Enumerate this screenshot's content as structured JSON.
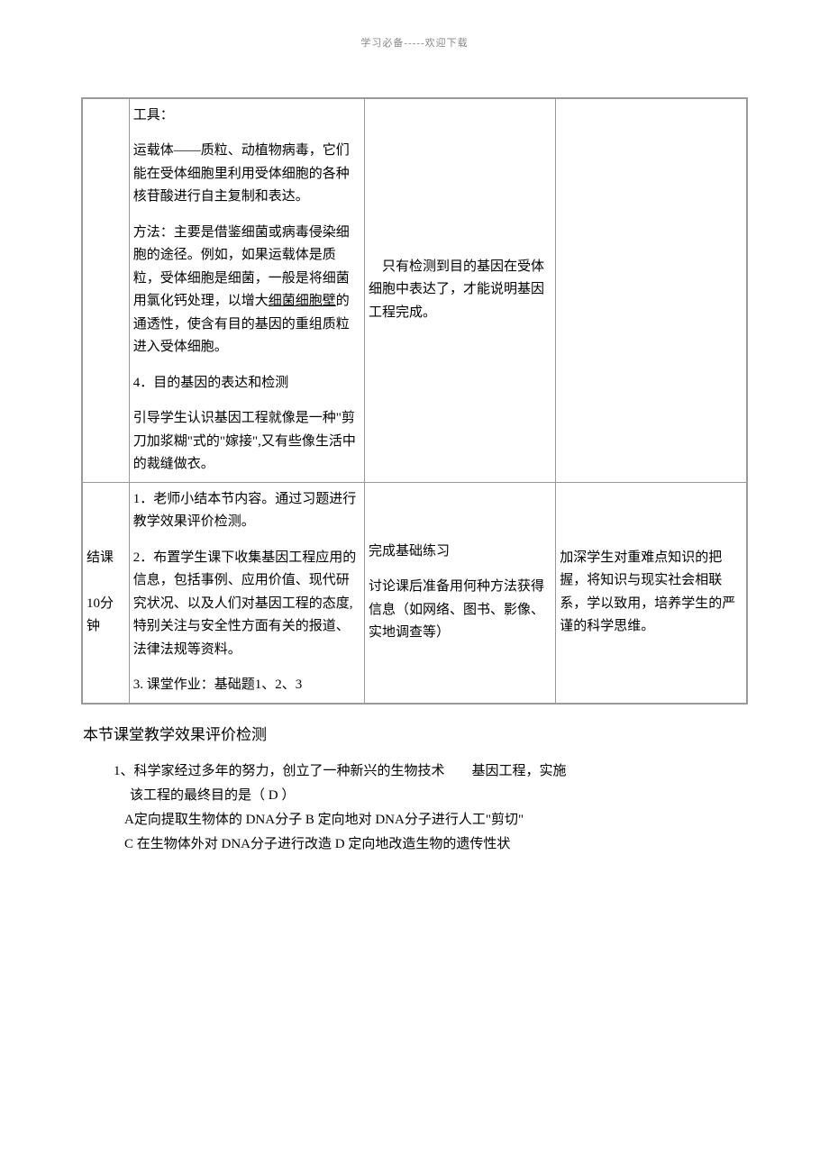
{
  "header": "学习必备-----欢迎下载",
  "table": {
    "row1": {
      "col1": "",
      "col2": {
        "p1": "工具：",
        "p2_part1": "运载体——质粒、动植物病毒，它们能在受体细胞里利用受体细胞的各种核苷酸进行自主复制和表达。",
        "p3_part1": "方法：主要是借鉴细菌或病毒侵染细胞的途径。例如，如果运载体是质粒，受体细胞是细菌，一般是将细菌用氯化钙处理，以增大",
        "p3_underline": "细菌细胞壁",
        "p3_part2": "的通透性，使含有目的基因的重组质粒进入受体细胞。",
        "p4": "4．目的基因的表达和检测",
        "p5": "引导学生认识基因工程就像是一种\"剪刀加浆糊\"式的\"嫁接\",又有些像生活中的裁缝做衣。"
      },
      "col3": "　只有检测到目的基因在受体细胞中表达了，才能说明基因工程完成。",
      "col4": ""
    },
    "row2": {
      "col1": "结课\n\n10分钟",
      "col2": {
        "p1": "1．老师小结本节内容。通过习题进行教学效果评价检测。",
        "p2": "2．布置学生课下收集基因工程应用的信息，包括事例、应用价值、现代研究状况、以及人们对基因工程的态度,特别关注与安全性方面有关的报道、法律法规等资料。",
        "p3": "3. 课堂作业：基础题1、2、3"
      },
      "col3": {
        "p1": "完成基础练习",
        "p2": "讨论课后准备用何种方法获得信息（如网络、图书、影像、实地调查等）"
      },
      "col4": "加深学生对重难点知识的把握，将知识与现实社会相联系，学以致用，培养学生的严谨的科学思维。"
    }
  },
  "evaluation": {
    "title": "本节课堂教学效果评价检测",
    "q1": {
      "line1": "1、科学家经过多年的努力，创立了一种新兴的生物技术　　基因工程，实施",
      "line2": "该工程的最终目的是（ D  ）",
      "optA": "A定向提取生物体的 DNA分子",
      "optB": "B 定向地对 DNA分子进行人工\"剪切\"",
      "optC": "C 在生物体外对 DNA分子进行改造",
      "optD": "D 定向地改造生物的遗传性状"
    }
  }
}
